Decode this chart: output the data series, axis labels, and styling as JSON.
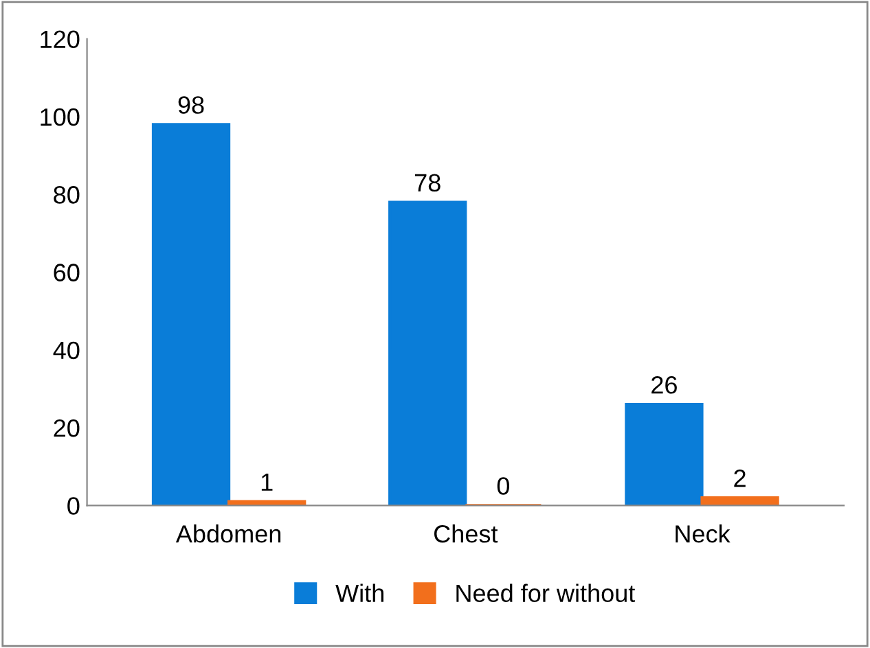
{
  "chart_data": {
    "type": "bar",
    "categories": [
      "Abdomen",
      "Chest",
      "Neck"
    ],
    "series": [
      {
        "name": "With",
        "color": "#0a7dd8",
        "values": [
          98,
          78,
          26
        ]
      },
      {
        "name": "Need for without",
        "color": "#f26f1c",
        "values": [
          1,
          0,
          2
        ]
      }
    ],
    "ylim": [
      0,
      120
    ],
    "yticks": [
      0,
      20,
      40,
      60,
      80,
      100,
      120
    ],
    "grid": false,
    "legend": "bottom",
    "data_labels": true
  }
}
